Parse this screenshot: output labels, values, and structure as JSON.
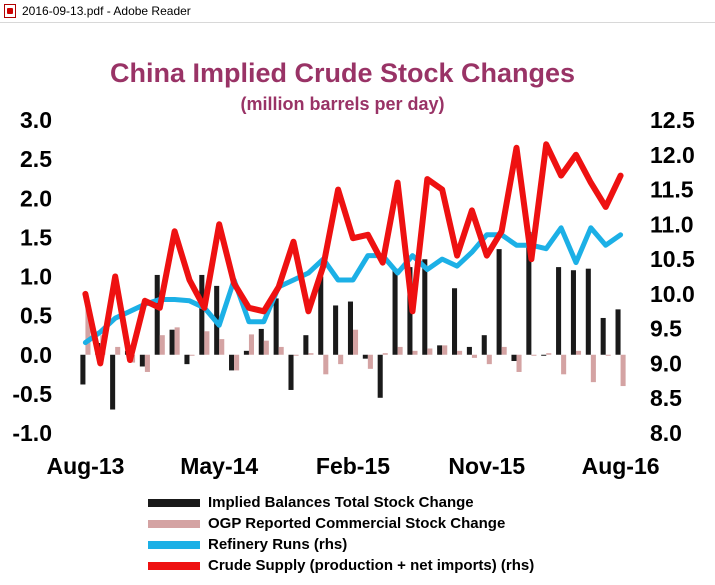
{
  "window": {
    "title": "2016-09-13.pdf - Adobe Reader"
  },
  "chart_data": {
    "type": "bar+line",
    "title": "China Implied Crude Stock Changes",
    "subtitle": "(million barrels per day)",
    "x_tick_labels": [
      "Aug-13",
      "May-14",
      "Feb-15",
      "Nov-15",
      "Aug-16"
    ],
    "x_tick_index": [
      0,
      9,
      18,
      27,
      36
    ],
    "y_left": {
      "min": -1.0,
      "max": 3.0,
      "ticks": [
        "-1.0",
        "-0.5",
        "0.0",
        "0.5",
        "1.0",
        "1.5",
        "2.0",
        "2.5",
        "3.0"
      ]
    },
    "y_right": {
      "min": 8.0,
      "max": 12.5,
      "ticks": [
        "8.0",
        "8.5",
        "9.0",
        "9.5",
        "10.0",
        "10.5",
        "11.0",
        "11.5",
        "12.0",
        "12.5"
      ]
    },
    "n_periods": 37,
    "series": [
      {
        "name": "Implied Balances Total Stock Change",
        "type": "bar",
        "axis": "left",
        "color": "#1a1a1a",
        "values": [
          -0.38,
          0.15,
          -0.7,
          0.05,
          -0.15,
          1.02,
          0.32,
          -0.12,
          1.02,
          0.88,
          -0.2,
          0.05,
          0.33,
          0.72,
          -0.45,
          0.25,
          1.0,
          0.63,
          0.68,
          -0.05,
          -0.55,
          1.1,
          1.12,
          1.22,
          0.12,
          0.85,
          0.1,
          0.25,
          1.35,
          -0.08,
          1.57,
          0.0,
          1.12,
          1.08,
          1.1,
          0.47,
          0.58
        ]
      },
      {
        "name": "OGP Reported Commercial Stock Change",
        "type": "bar",
        "axis": "left",
        "color": "#d4a3a3",
        "values": [
          0.67,
          0.25,
          0.1,
          -0.1,
          -0.22,
          0.25,
          0.35,
          0.0,
          0.3,
          0.2,
          -0.2,
          0.26,
          0.18,
          0.1,
          0.0,
          0.02,
          -0.25,
          -0.12,
          0.32,
          -0.18,
          0.02,
          0.1,
          0.05,
          0.08,
          0.12,
          0.05,
          -0.04,
          -0.12,
          0.1,
          -0.22,
          0.0,
          0.02,
          -0.25,
          0.05,
          -0.35,
          0.0,
          -0.4
        ]
      },
      {
        "name": "Refinery Runs (rhs)",
        "type": "line",
        "axis": "right",
        "color": "#1cb0e6",
        "values": [
          9.3,
          9.45,
          9.65,
          9.75,
          9.85,
          9.92,
          9.92,
          9.9,
          9.8,
          9.55,
          10.2,
          9.6,
          9.6,
          10.1,
          10.2,
          10.3,
          10.5,
          10.2,
          10.2,
          10.55,
          10.55,
          10.3,
          10.55,
          10.35,
          10.5,
          10.4,
          10.6,
          10.85,
          10.85,
          10.7,
          10.7,
          10.65,
          10.95,
          10.45,
          10.95,
          10.7,
          10.85
        ]
      },
      {
        "name": "Crude Supply (production + net imports) (rhs)",
        "type": "line",
        "axis": "right",
        "color": "#ee1111",
        "values": [
          10.0,
          9.0,
          10.25,
          9.05,
          9.9,
          9.8,
          10.9,
          10.2,
          9.8,
          11.0,
          10.15,
          9.8,
          9.75,
          10.1,
          10.75,
          9.75,
          10.4,
          11.5,
          10.8,
          10.85,
          10.45,
          11.6,
          9.75,
          11.65,
          11.5,
          10.55,
          11.2,
          10.55,
          10.9,
          12.1,
          10.5,
          12.15,
          11.7,
          12.0,
          11.6,
          11.25,
          11.7
        ]
      }
    ],
    "legend_position": "bottom",
    "grid": false
  }
}
